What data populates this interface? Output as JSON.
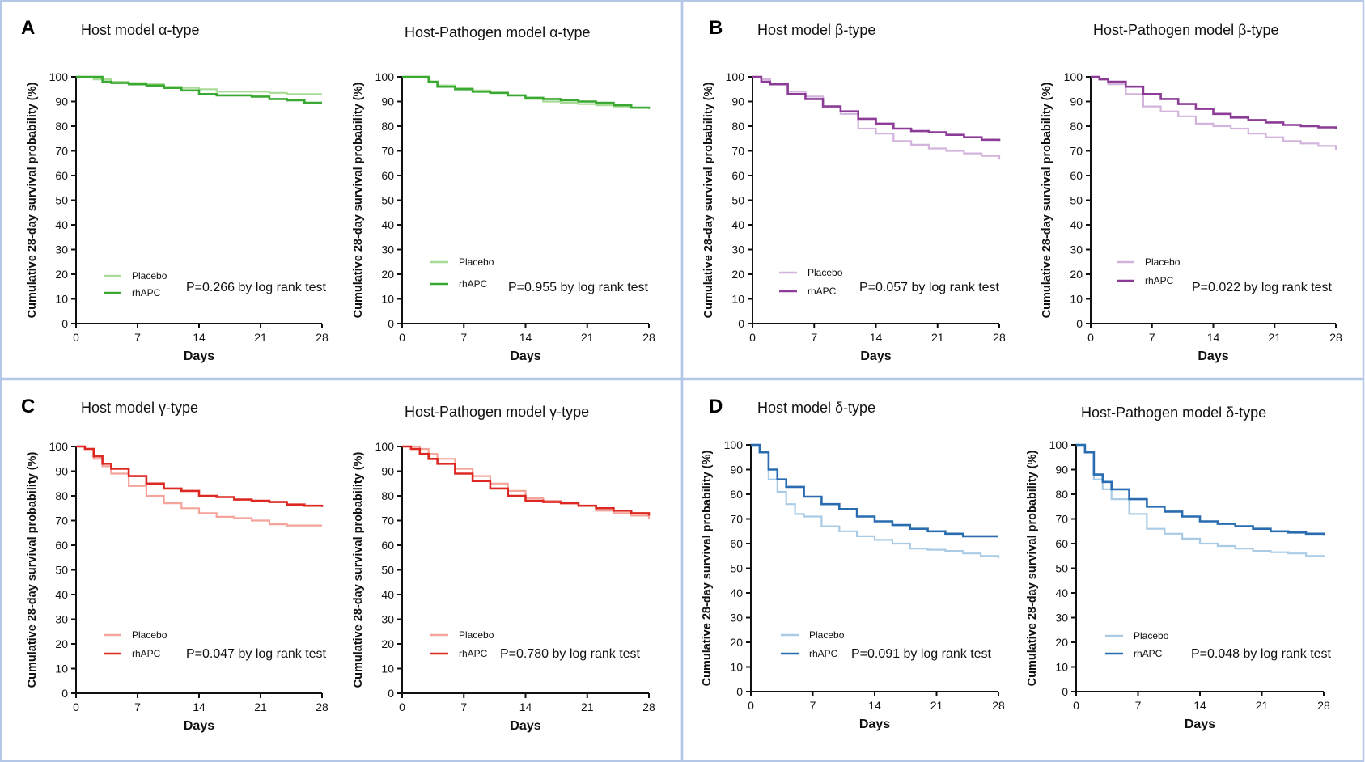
{
  "figure": {
    "panels": [
      {
        "letter": "A",
        "titles": [
          "Host model α-type",
          "Host-Pathogen model α-type"
        ]
      },
      {
        "letter": "B",
        "titles": [
          "Host model β-type",
          "Host-Pathogen model β-type"
        ]
      },
      {
        "letter": "C",
        "titles": [
          "Host model γ-type",
          "Host-Pathogen model γ-type"
        ]
      },
      {
        "letter": "D",
        "titles": [
          "Host model δ-type",
          "Host-Pathogen model δ-type"
        ]
      }
    ],
    "colors": {
      "border": "#b4c7e7",
      "axis": "#111111"
    }
  },
  "chart_data": [
    {
      "type": "line",
      "panel": "A",
      "title": "Host model α-type",
      "xlabel": "Days",
      "ylabel": "Cumulative 28-day survival probability (%)",
      "xlim": [
        0,
        28
      ],
      "ylim": [
        0,
        100
      ],
      "xticks": [
        "0",
        "7",
        "14",
        "21",
        "28"
      ],
      "yticks": [
        "0",
        "10",
        "20",
        "30",
        "40",
        "50",
        "60",
        "70",
        "80",
        "90",
        "100"
      ],
      "pvalue": "P=0.266 by log rank test",
      "series": [
        {
          "name": "Placebo",
          "color": "#a8dc96",
          "x": [
            0,
            2,
            4,
            6,
            8,
            10,
            12,
            14,
            16,
            18,
            20,
            22,
            24,
            26,
            28
          ],
          "values": [
            100,
            99,
            98,
            97.5,
            97,
            96,
            95.5,
            95,
            94,
            94,
            94,
            93.5,
            93,
            93,
            93
          ]
        },
        {
          "name": "rhAPC",
          "color": "#3aa932",
          "x": [
            0,
            2,
            3,
            4,
            6,
            8,
            10,
            12,
            14,
            16,
            18,
            20,
            22,
            24,
            26,
            28
          ],
          "values": [
            100,
            100,
            98,
            97.5,
            97,
            96.5,
            95.5,
            94.5,
            93,
            92.5,
            92.5,
            92,
            91,
            90.5,
            89.5,
            89.5
          ]
        }
      ]
    },
    {
      "type": "line",
      "panel": "A",
      "title": "Host-Pathogen model α-type",
      "xlabel": "Days",
      "ylabel": "Cumulative 28-day survival probability (%)",
      "xlim": [
        0,
        28
      ],
      "ylim": [
        0,
        100
      ],
      "xticks": [
        "0",
        "7",
        "14",
        "21",
        "28"
      ],
      "yticks": [
        "0",
        "10",
        "20",
        "30",
        "40",
        "50",
        "60",
        "70",
        "80",
        "90",
        "100"
      ],
      "pvalue": "P=0.955 by log rank test",
      "series": [
        {
          "name": "Placebo",
          "color": "#a8dc96",
          "x": [
            0,
            2,
            3,
            4,
            6,
            8,
            10,
            12,
            14,
            16,
            18,
            20,
            22,
            24,
            26,
            28
          ],
          "values": [
            100,
            100,
            98,
            96.5,
            95.5,
            94.5,
            93.5,
            92.5,
            91,
            90,
            89.5,
            89,
            88.5,
            88,
            87.5,
            87.5
          ]
        },
        {
          "name": "rhAPC",
          "color": "#3aa932",
          "x": [
            0,
            2,
            3,
            4,
            6,
            8,
            10,
            12,
            14,
            16,
            18,
            20,
            22,
            24,
            26,
            28
          ],
          "values": [
            100,
            100,
            98,
            96,
            95,
            94,
            93.5,
            92.5,
            91.5,
            91,
            90.5,
            90,
            89.5,
            88.5,
            87.5,
            87
          ]
        }
      ]
    },
    {
      "type": "line",
      "panel": "B",
      "title": "Host model β-type",
      "xlabel": "Days",
      "ylabel": "Cumulative 28-day survival probability (%)",
      "xlim": [
        0,
        28
      ],
      "ylim": [
        0,
        100
      ],
      "xticks": [
        "0",
        "7",
        "14",
        "21",
        "28"
      ],
      "yticks": [
        "0",
        "10",
        "20",
        "30",
        "40",
        "50",
        "60",
        "70",
        "80",
        "90",
        "100"
      ],
      "pvalue": "P=0.057 by log rank test",
      "series": [
        {
          "name": "Placebo",
          "color": "#d2b4dc",
          "x": [
            0,
            1,
            2,
            4,
            6,
            8,
            10,
            12,
            14,
            16,
            18,
            20,
            22,
            24,
            26,
            28
          ],
          "values": [
            100,
            99,
            97,
            94,
            92,
            88,
            85,
            79,
            77,
            74,
            72.5,
            71,
            70,
            69,
            68,
            66.5
          ]
        },
        {
          "name": "rhAPC",
          "color": "#8c3c96",
          "x": [
            0,
            1,
            2,
            4,
            6,
            8,
            10,
            12,
            14,
            16,
            18,
            20,
            22,
            24,
            26,
            28
          ],
          "values": [
            100,
            98,
            97,
            93,
            91,
            88,
            86,
            83,
            81,
            79,
            78,
            77.5,
            76.5,
            75.5,
            74.5,
            74
          ]
        }
      ]
    },
    {
      "type": "line",
      "panel": "B",
      "title": "Host-Pathogen model β-type",
      "xlabel": "Days",
      "ylabel": "Cumulative 28-day survival probability (%)",
      "xlim": [
        0,
        28
      ],
      "ylim": [
        0,
        100
      ],
      "xticks": [
        "0",
        "7",
        "14",
        "21",
        "28"
      ],
      "yticks": [
        "0",
        "10",
        "20",
        "30",
        "40",
        "50",
        "60",
        "70",
        "80",
        "90",
        "100"
      ],
      "pvalue": "P=0.022 by log rank test",
      "series": [
        {
          "name": "Placebo",
          "color": "#d2b4dc",
          "x": [
            0,
            1,
            2,
            4,
            6,
            8,
            10,
            12,
            14,
            16,
            18,
            20,
            22,
            24,
            26,
            28
          ],
          "values": [
            100,
            99,
            97,
            93,
            88,
            86,
            84,
            81,
            80,
            79,
            77,
            75.5,
            74,
            73,
            72,
            70.5
          ]
        },
        {
          "name": "rhAPC",
          "color": "#8c3c96",
          "x": [
            0,
            1,
            2,
            4,
            6,
            8,
            10,
            12,
            14,
            16,
            18,
            20,
            22,
            24,
            26,
            28
          ],
          "values": [
            100,
            99,
            98,
            96,
            93,
            91,
            89,
            87,
            85,
            83.5,
            82.5,
            81.5,
            80.5,
            80,
            79.5,
            79
          ]
        }
      ]
    },
    {
      "type": "line",
      "panel": "C",
      "title": "Host model γ-type",
      "xlabel": "Days",
      "ylabel": "Cumulative 28-day survival probability (%)",
      "xlim": [
        0,
        28
      ],
      "ylim": [
        0,
        100
      ],
      "xticks": [
        "0",
        "7",
        "14",
        "21",
        "28"
      ],
      "yticks": [
        "0",
        "10",
        "20",
        "30",
        "40",
        "50",
        "60",
        "70",
        "80",
        "90",
        "100"
      ],
      "pvalue": "P=0.047 by log rank test",
      "series": [
        {
          "name": "Placebo",
          "color": "#f4a49a",
          "x": [
            0,
            1,
            2,
            3,
            4,
            6,
            8,
            10,
            12,
            14,
            16,
            18,
            20,
            22,
            24,
            26,
            28
          ],
          "values": [
            100,
            99,
            95,
            92,
            89,
            84,
            80,
            77,
            75,
            73,
            71.5,
            71,
            70,
            68.5,
            68,
            68,
            68
          ]
        },
        {
          "name": "rhAPC",
          "color": "#dd2822",
          "x": [
            0,
            1,
            2,
            3,
            4,
            6,
            8,
            10,
            12,
            14,
            16,
            18,
            20,
            22,
            24,
            26,
            28
          ],
          "values": [
            100,
            99,
            96,
            93,
            91,
            88,
            85,
            83,
            82,
            80,
            79.5,
            78.5,
            78,
            77.5,
            76.5,
            76,
            75.5
          ]
        }
      ]
    },
    {
      "type": "line",
      "panel": "C",
      "title": "Host-Pathogen model γ-type",
      "xlabel": "Days",
      "ylabel": "Cumulative 28-day survival probability (%)",
      "xlim": [
        0,
        28
      ],
      "ylim": [
        0,
        100
      ],
      "xticks": [
        "0",
        "7",
        "14",
        "21",
        "28"
      ],
      "yticks": [
        "0",
        "10",
        "20",
        "30",
        "40",
        "50",
        "60",
        "70",
        "80",
        "90",
        "100"
      ],
      "pvalue": "P=0.780 by log rank test",
      "series": [
        {
          "name": "Placebo",
          "color": "#f4a49a",
          "x": [
            0,
            1,
            2,
            3,
            4,
            6,
            8,
            10,
            12,
            14,
            16,
            18,
            20,
            22,
            24,
            26,
            28
          ],
          "values": [
            100,
            100,
            99,
            97,
            95,
            91,
            88,
            85,
            82,
            79,
            78,
            77,
            76,
            74,
            73,
            72,
            70.5
          ]
        },
        {
          "name": "rhAPC",
          "color": "#dd2822",
          "x": [
            0,
            1,
            2,
            3,
            4,
            6,
            8,
            10,
            12,
            14,
            16,
            18,
            20,
            22,
            24,
            26,
            28
          ],
          "values": [
            100,
            99,
            97,
            95,
            93,
            89,
            86,
            83,
            80,
            78,
            77.5,
            77,
            76,
            75,
            74,
            73,
            72
          ]
        }
      ]
    },
    {
      "type": "line",
      "panel": "D",
      "title": "Host model δ-type",
      "xlabel": "Days",
      "ylabel": "Cumulative 28-day survival probability (%)",
      "xlim": [
        0,
        28
      ],
      "ylim": [
        0,
        100
      ],
      "xticks": [
        "0",
        "7",
        "14",
        "21",
        "28"
      ],
      "yticks": [
        "0",
        "10",
        "20",
        "30",
        "40",
        "50",
        "60",
        "70",
        "80",
        "90",
        "100"
      ],
      "pvalue": "P=0.091 by log rank test",
      "series": [
        {
          "name": "Placebo",
          "color": "#a9cbe6",
          "x": [
            0,
            1,
            2,
            3,
            4,
            5,
            6,
            8,
            10,
            12,
            14,
            16,
            18,
            20,
            22,
            24,
            26,
            28
          ],
          "values": [
            100,
            97,
            86,
            81,
            76,
            72,
            71,
            67,
            65,
            63,
            61.5,
            60,
            58,
            57.5,
            57,
            56,
            55,
            54
          ]
        },
        {
          "name": "rhAPC",
          "color": "#2a6cb0",
          "x": [
            0,
            1,
            2,
            3,
            4,
            6,
            8,
            10,
            12,
            14,
            16,
            18,
            20,
            22,
            24,
            26,
            28
          ],
          "values": [
            100,
            97,
            90,
            86,
            83,
            79,
            76,
            74,
            71,
            69,
            67.5,
            66,
            65,
            64,
            63,
            63,
            63
          ]
        }
      ]
    },
    {
      "type": "line",
      "panel": "D",
      "title": "Host-Pathogen model δ-type",
      "xlabel": "Days",
      "ylabel": "Cumulative 28-day survival probability (%)",
      "xlim": [
        0,
        28
      ],
      "ylim": [
        0,
        100
      ],
      "xticks": [
        "0",
        "7",
        "14",
        "21",
        "28"
      ],
      "yticks": [
        "0",
        "10",
        "20",
        "30",
        "40",
        "50",
        "60",
        "70",
        "80",
        "90",
        "100"
      ],
      "pvalue": "P=0.048 by log rank test",
      "series": [
        {
          "name": "Placebo",
          "color": "#a9cbe6",
          "x": [
            0,
            1,
            2,
            3,
            4,
            6,
            8,
            10,
            12,
            14,
            16,
            18,
            20,
            22,
            24,
            26,
            28
          ],
          "values": [
            100,
            97,
            86,
            82,
            78,
            72,
            66,
            64,
            62,
            60,
            59,
            58,
            57,
            56.5,
            56,
            55,
            54.5
          ]
        },
        {
          "name": "rhAPC",
          "color": "#2a6cb0",
          "x": [
            0,
            1,
            2,
            3,
            4,
            6,
            8,
            10,
            12,
            14,
            16,
            18,
            20,
            22,
            24,
            26,
            28
          ],
          "values": [
            100,
            97,
            88,
            85,
            82,
            78,
            75,
            73,
            71,
            69,
            68,
            67,
            66,
            65,
            64.5,
            64,
            63.5
          ]
        }
      ]
    }
  ]
}
